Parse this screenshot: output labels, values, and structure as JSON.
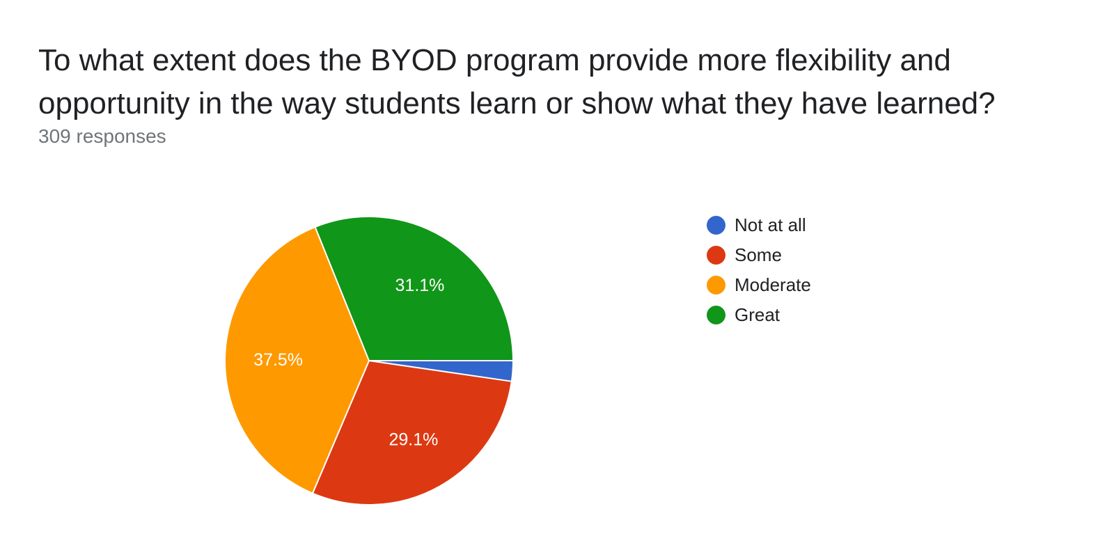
{
  "question": {
    "title": "To what extent does the BYOD program provide more flexibility and opportunity in the way students learn or show what they have learned?",
    "responses_label": "309 responses"
  },
  "chart_data": {
    "type": "pie",
    "title": "",
    "legend_position": "right",
    "slices": [
      {
        "label": "Not at all",
        "value": 2.3,
        "value_label": "",
        "color": "#3366cc"
      },
      {
        "label": "Some",
        "value": 29.1,
        "value_label": "29.1%",
        "color": "#dc3912"
      },
      {
        "label": "Moderate",
        "value": 37.5,
        "value_label": "37.5%",
        "color": "#ff9900"
      },
      {
        "label": "Great",
        "value": 31.1,
        "value_label": "31.1%",
        "color": "#109618"
      }
    ]
  }
}
